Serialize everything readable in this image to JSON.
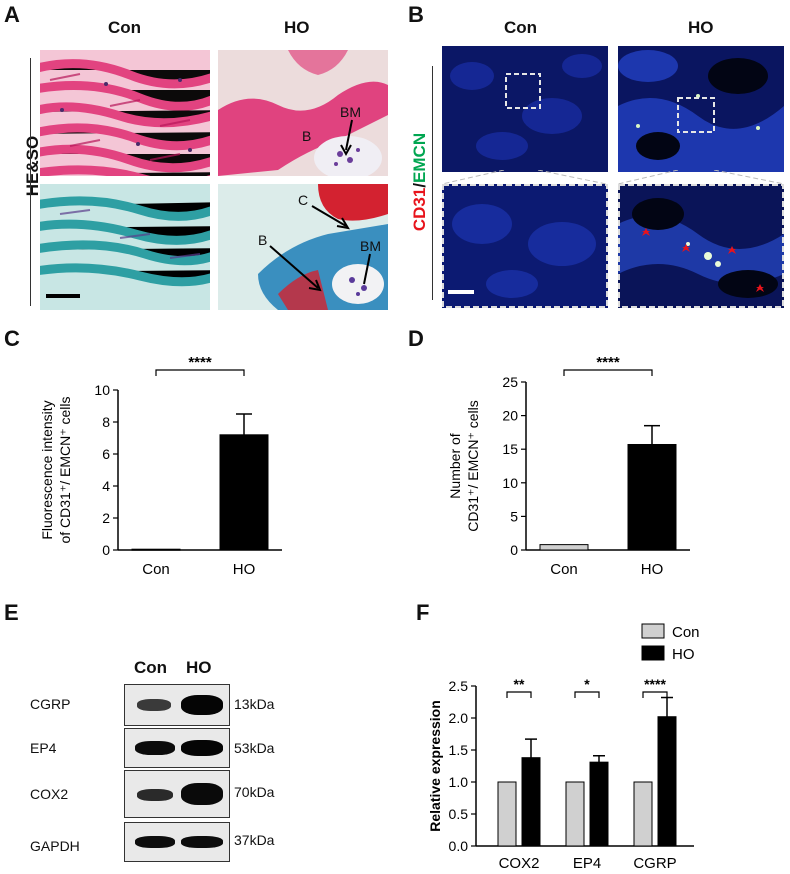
{
  "panels": {
    "A": {
      "letter": "A",
      "col_headers": [
        "Con",
        "HO"
      ],
      "row_label": "HE&SO",
      "annotations": {
        "B_top": "B",
        "BM_top": "BM",
        "C": "C",
        "B_bottom": "B",
        "BM_bottom": "BM"
      }
    },
    "B": {
      "letter": "B",
      "col_headers": [
        "Con",
        "HO"
      ],
      "row_label_red": "CD31",
      "row_label_sep": "/",
      "row_label_green": "EMCN"
    },
    "C": {
      "letter": "C"
    },
    "D": {
      "letter": "D"
    },
    "E": {
      "letter": "E",
      "col_headers": [
        "Con",
        "HO"
      ],
      "rows": [
        {
          "protein": "CGRP",
          "kda": "13kDa"
        },
        {
          "protein": "EP4",
          "kda": "53kDa"
        },
        {
          "protein": "COX2",
          "kda": "70kDa"
        },
        {
          "protein": "GAPDH",
          "kda": "37kDa"
        }
      ]
    },
    "F": {
      "letter": "F"
    }
  },
  "colors": {
    "he_pink": "#e64a86",
    "so_teal": "#3aa9ab",
    "fluor_blue": "#0e1f8a",
    "bar_black": "#000000",
    "bar_gray": "#d0d0d0",
    "cd31_red": "#e8131b",
    "emcn_green": "#00a651"
  },
  "chart_data": [
    {
      "id": "C",
      "type": "bar",
      "categories": [
        "Con",
        "HO"
      ],
      "values": [
        0.05,
        7.2
      ],
      "errors": [
        0,
        1.3
      ],
      "ylabel_line1": "Fluorescence intensity",
      "ylabel_line2": "of CD31⁺/ EMCN⁺ cells",
      "ylim": [
        0,
        10
      ],
      "yticks": [
        "0",
        "2",
        "4",
        "6",
        "8",
        "10"
      ],
      "significance": "****",
      "bar_colors": [
        "#d0d0d0",
        "#000000"
      ]
    },
    {
      "id": "D",
      "type": "bar",
      "categories": [
        "Con",
        "HO"
      ],
      "values": [
        0.8,
        15.7
      ],
      "errors": [
        0,
        2.8
      ],
      "ylabel_line1": "Number of",
      "ylabel_line2": "CD31⁺/ EMCN⁺ cells",
      "ylim": [
        0,
        25
      ],
      "yticks": [
        "0",
        "5",
        "10",
        "15",
        "20",
        "25"
      ],
      "significance": "****",
      "bar_colors": [
        "#d0d0d0",
        "#000000"
      ]
    },
    {
      "id": "F",
      "type": "bar",
      "categories": [
        "COX2",
        "EP4",
        "CGRP"
      ],
      "series": [
        {
          "name": "Con",
          "values": [
            1.0,
            1.0,
            1.0
          ],
          "errors": [
            0,
            0,
            0
          ]
        },
        {
          "name": "HO",
          "values": [
            1.38,
            1.31,
            2.02
          ],
          "errors": [
            0.29,
            0.1,
            0.3
          ]
        }
      ],
      "ylabel": "Relative expression",
      "ylim": [
        0,
        2.5
      ],
      "yticks": [
        "0.0",
        "0.5",
        "1.0",
        "1.5",
        "2.0",
        "2.5"
      ],
      "significance": [
        "**",
        "*",
        "****"
      ],
      "legend_position": "top-right",
      "series_colors": [
        "#d0d0d0",
        "#000000"
      ]
    }
  ]
}
